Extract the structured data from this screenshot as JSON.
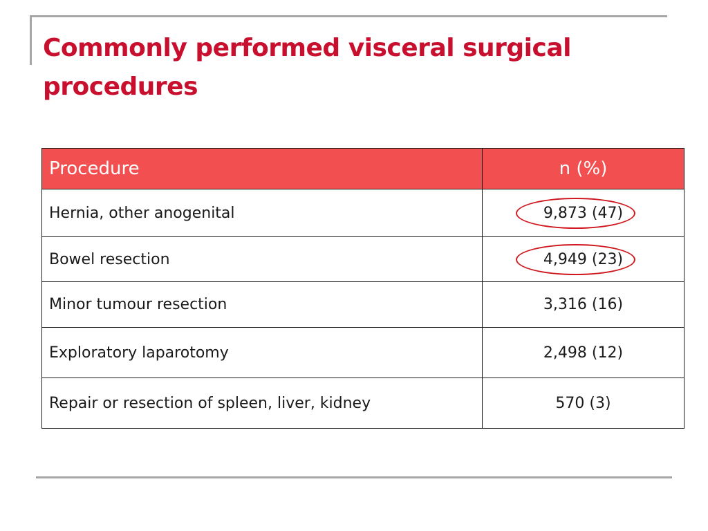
{
  "title": "Commonly performed visceral surgical procedures",
  "colors": {
    "title": "#c8102e",
    "header_bg": "#f25050",
    "header_text": "#ffffff",
    "highlight_circle": "#d0181e",
    "frame_lines": "#a6a6a6"
  },
  "table": {
    "headers": {
      "procedure": "Procedure",
      "n": "n (%)"
    },
    "rows": [
      {
        "procedure": "Hernia, other anogenital",
        "n": "9,873 (47)",
        "circled": true
      },
      {
        "procedure": "Bowel resection",
        "n": "4,949 (23)",
        "circled": true
      },
      {
        "procedure": "Minor tumour resection",
        "n": "3,316 (16)",
        "circled": false
      },
      {
        "procedure": "Exploratory laparotomy",
        "n": "2,498 (12)",
        "circled": false
      },
      {
        "procedure": "Repair or resection of spleen, liver, kidney",
        "n": "570 (3)",
        "circled": false
      }
    ]
  }
}
